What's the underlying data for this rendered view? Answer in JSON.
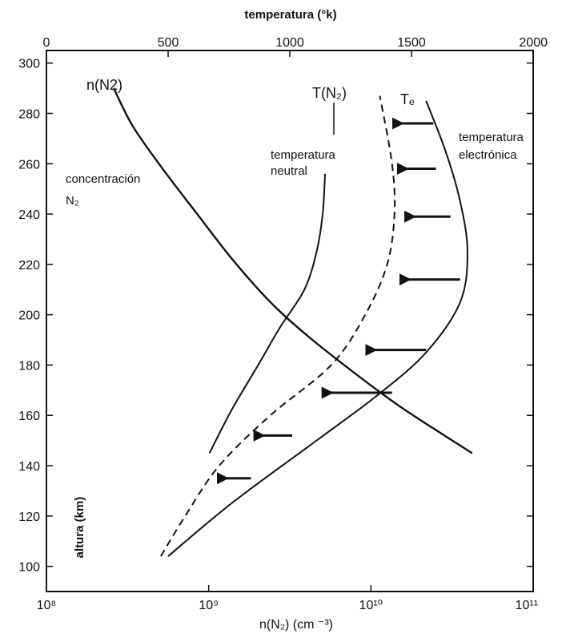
{
  "chart_data": {
    "type": "line",
    "title": "",
    "top_axis": {
      "label": "temperatura (°k)",
      "ticks": [
        "0",
        "500",
        "1000",
        "1500",
        "2000"
      ],
      "range": [
        0,
        2000
      ]
    },
    "bottom_axis": {
      "label": "n(N₂) (cm ⁻³)",
      "scale": "log",
      "ticks": [
        "10⁸",
        "10⁹",
        "10¹⁰",
        "10¹¹"
      ],
      "range": [
        100000000.0,
        100000000000.0
      ]
    },
    "left_axis": {
      "label": "altura (km)",
      "ticks": [
        "100",
        "120",
        "140",
        "160",
        "180",
        "200",
        "220",
        "240",
        "260",
        "280",
        "300"
      ],
      "range": [
        90,
        305
      ]
    },
    "series": [
      {
        "name": "n(N2)",
        "axis": "bottom",
        "style": "solid",
        "points": [
          [
            260000000.0,
            290
          ],
          [
            340000000.0,
            275
          ],
          [
            520000000.0,
            258
          ],
          [
            850000000.0,
            240
          ],
          [
            1400000000.0,
            222
          ],
          [
            2400000000.0,
            205
          ],
          [
            4000000000.0,
            192
          ],
          [
            7500000000.0,
            178
          ],
          [
            14000000000.0,
            165
          ],
          [
            24000000000.0,
            155
          ],
          [
            42000000000.0,
            145
          ]
        ]
      },
      {
        "name": "T(N₂)",
        "axis": "top",
        "style": "solid",
        "points": [
          [
            670,
            145
          ],
          [
            760,
            162
          ],
          [
            870,
            180
          ],
          [
            960,
            195
          ],
          [
            1060,
            210
          ],
          [
            1110,
            225
          ],
          [
            1135,
            240
          ],
          [
            1145,
            256
          ]
        ]
      },
      {
        "name": "Tₑ",
        "axis": "top",
        "style": "dashed",
        "points": [
          [
            470,
            104
          ],
          [
            570,
            120
          ],
          [
            710,
            140
          ],
          [
            920,
            160
          ],
          [
            1170,
            180
          ],
          [
            1310,
            200
          ],
          [
            1400,
            220
          ],
          [
            1430,
            240
          ],
          [
            1420,
            260
          ],
          [
            1370,
            287
          ]
        ]
      },
      {
        "name": "temperatura electrónica",
        "axis": "top",
        "style": "solid",
        "points": [
          [
            500,
            104
          ],
          [
            760,
            125
          ],
          [
            1110,
            150
          ],
          [
            1360,
            168
          ],
          [
            1560,
            185
          ],
          [
            1700,
            205
          ],
          [
            1730,
            225
          ],
          [
            1700,
            245
          ],
          [
            1640,
            265
          ],
          [
            1560,
            285
          ]
        ]
      }
    ],
    "arrows": [
      {
        "from": [
          1590,
          276
        ],
        "to": [
          1460,
          276
        ]
      },
      {
        "from": [
          1600,
          258
        ],
        "to": [
          1480,
          258
        ]
      },
      {
        "from": [
          1660,
          239
        ],
        "to": [
          1510,
          239
        ]
      },
      {
        "from": [
          1700,
          214
        ],
        "to": [
          1490,
          214
        ]
      },
      {
        "from": [
          1560,
          186
        ],
        "to": [
          1350,
          186
        ]
      },
      {
        "from": [
          1420,
          169
        ],
        "to": [
          1170,
          169
        ]
      },
      {
        "from": [
          1010,
          152
        ],
        "to": [
          890,
          152
        ]
      },
      {
        "from": [
          840,
          135
        ],
        "to": [
          740,
          135
        ]
      }
    ],
    "annotations": {
      "n_n2_label": "n(N2)",
      "tn_label": "T(N₂)",
      "te_label": "Tₑ",
      "neutral_temp": [
        "temperatura",
        "neutral"
      ],
      "electron_temp": [
        "temperatura",
        "electrónica"
      ],
      "n2_conc": [
        "concentración",
        "N₂"
      ]
    },
    "grid": false,
    "legend": "none"
  }
}
